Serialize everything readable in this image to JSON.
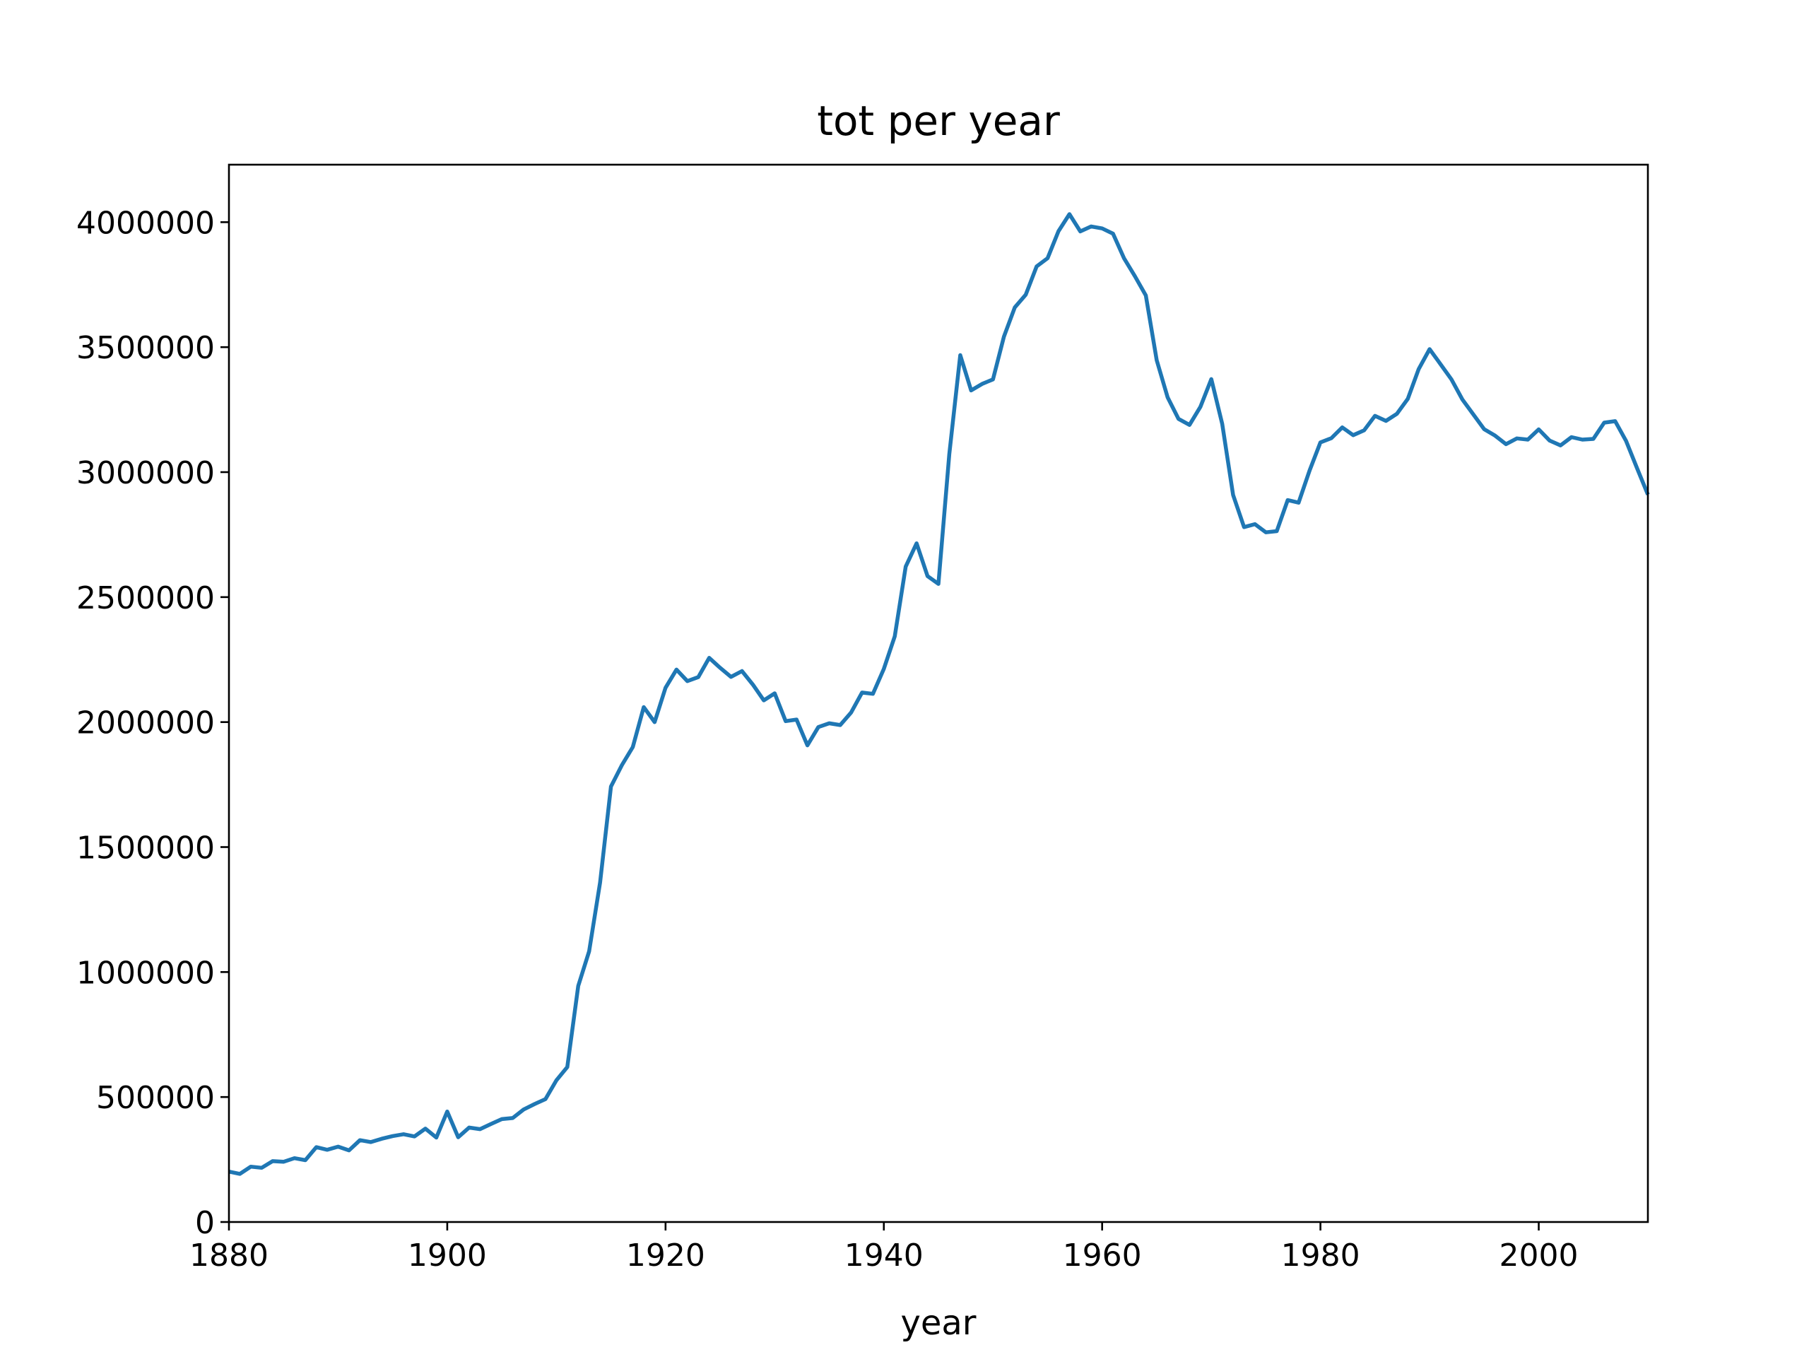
{
  "chart_data": {
    "type": "line",
    "title": "tot per year",
    "xlabel": "year",
    "ylabel": "",
    "xlim": [
      1880,
      2010
    ],
    "ylim": [
      0,
      4230000
    ],
    "xticks": [
      1880,
      1900,
      1920,
      1940,
      1960,
      1980,
      2000
    ],
    "xtick_labels": [
      "1880",
      "1900",
      "1920",
      "1940",
      "1960",
      "1980",
      "2000"
    ],
    "yticks": [
      0,
      500000,
      1000000,
      1500000,
      2000000,
      2500000,
      3000000,
      3500000,
      4000000
    ],
    "ytick_labels": [
      "0",
      "500000",
      "1000000",
      "1500000",
      "2000000",
      "2500000",
      "3000000",
      "3500000",
      "4000000"
    ],
    "grid": false,
    "line_color": "#1f77b4",
    "series": [
      {
        "x": [
          1880,
          1881,
          1882,
          1883,
          1884,
          1885,
          1886,
          1887,
          1888,
          1889,
          1890,
          1891,
          1892,
          1893,
          1894,
          1895,
          1896,
          1897,
          1898,
          1899,
          1900,
          1901,
          1902,
          1903,
          1904,
          1905,
          1906,
          1907,
          1908,
          1909,
          1910,
          1911,
          1912,
          1913,
          1914,
          1915,
          1916,
          1917,
          1918,
          1919,
          1920,
          1921,
          1922,
          1923,
          1924,
          1925,
          1926,
          1927,
          1928,
          1929,
          1930,
          1931,
          1932,
          1933,
          1934,
          1935,
          1936,
          1937,
          1938,
          1939,
          1940,
          1941,
          1942,
          1943,
          1944,
          1945,
          1946,
          1947,
          1948,
          1949,
          1950,
          1951,
          1952,
          1953,
          1954,
          1955,
          1956,
          1957,
          1958,
          1959,
          1960,
          1961,
          1962,
          1963,
          1964,
          1965,
          1966,
          1967,
          1968,
          1969,
          1970,
          1971,
          1972,
          1973,
          1974,
          1975,
          1976,
          1977,
          1978,
          1979,
          1980,
          1981,
          1982,
          1983,
          1984,
          1985,
          1986,
          1987,
          1988,
          1989,
          1990,
          1991,
          1992,
          1993,
          1994,
          1995,
          1996,
          1997,
          1998,
          1999,
          2000,
          2001,
          2002,
          2003,
          2004,
          2005,
          2006,
          2007,
          2008,
          2009,
          2010
        ],
        "values": [
          201484,
          192696,
          221533,
          216946,
          243462,
          240854,
          255317,
          247394,
          299473,
          288946,
          301401,
          286699,
          327334,
          319679,
          333075,
          343962,
          351160,
          342420,
          373592,
          338002,
          441883,
          339026,
          377884,
          371567,
          391790,
          411602,
          416034,
          450138,
          472020,
          491800,
          567013,
          619730,
          944730,
          1082890,
          1358000,
          1742000,
          1828000,
          1900000,
          2060000,
          2000000,
          2137000,
          2210000,
          2164000,
          2180000,
          2257000,
          2217000,
          2181000,
          2204000,
          2150000,
          2087000,
          2115000,
          2004000,
          2010000,
          1907000,
          1980000,
          1995000,
          1988000,
          2038000,
          2118000,
          2113000,
          2213000,
          2343000,
          2622000,
          2715000,
          2584000,
          2553000,
          3072000,
          3468000,
          3327000,
          3353000,
          3371000,
          3542000,
          3659000,
          3710000,
          3823000,
          3856000,
          3964000,
          4032000,
          3963000,
          3983000,
          3975000,
          3954000,
          3856000,
          3784000,
          3707000,
          3448000,
          3299000,
          3213000,
          3189000,
          3261000,
          3372000,
          3193000,
          2909000,
          2780000,
          2792000,
          2759000,
          2764000,
          2888000,
          2878000,
          3006000,
          3119000,
          3136000,
          3179000,
          3148000,
          3167000,
          3225000,
          3205000,
          3233000,
          3293000,
          3412000,
          3492000,
          3432000,
          3371000,
          3291000,
          3231000,
          3172000,
          3146000,
          3112000,
          3135000,
          3130000,
          3171000,
          3126000,
          3107000,
          3140000,
          3130000,
          3133000,
          3198000,
          3204000,
          3125000,
          3016000,
          2910000
        ]
      }
    ]
  }
}
